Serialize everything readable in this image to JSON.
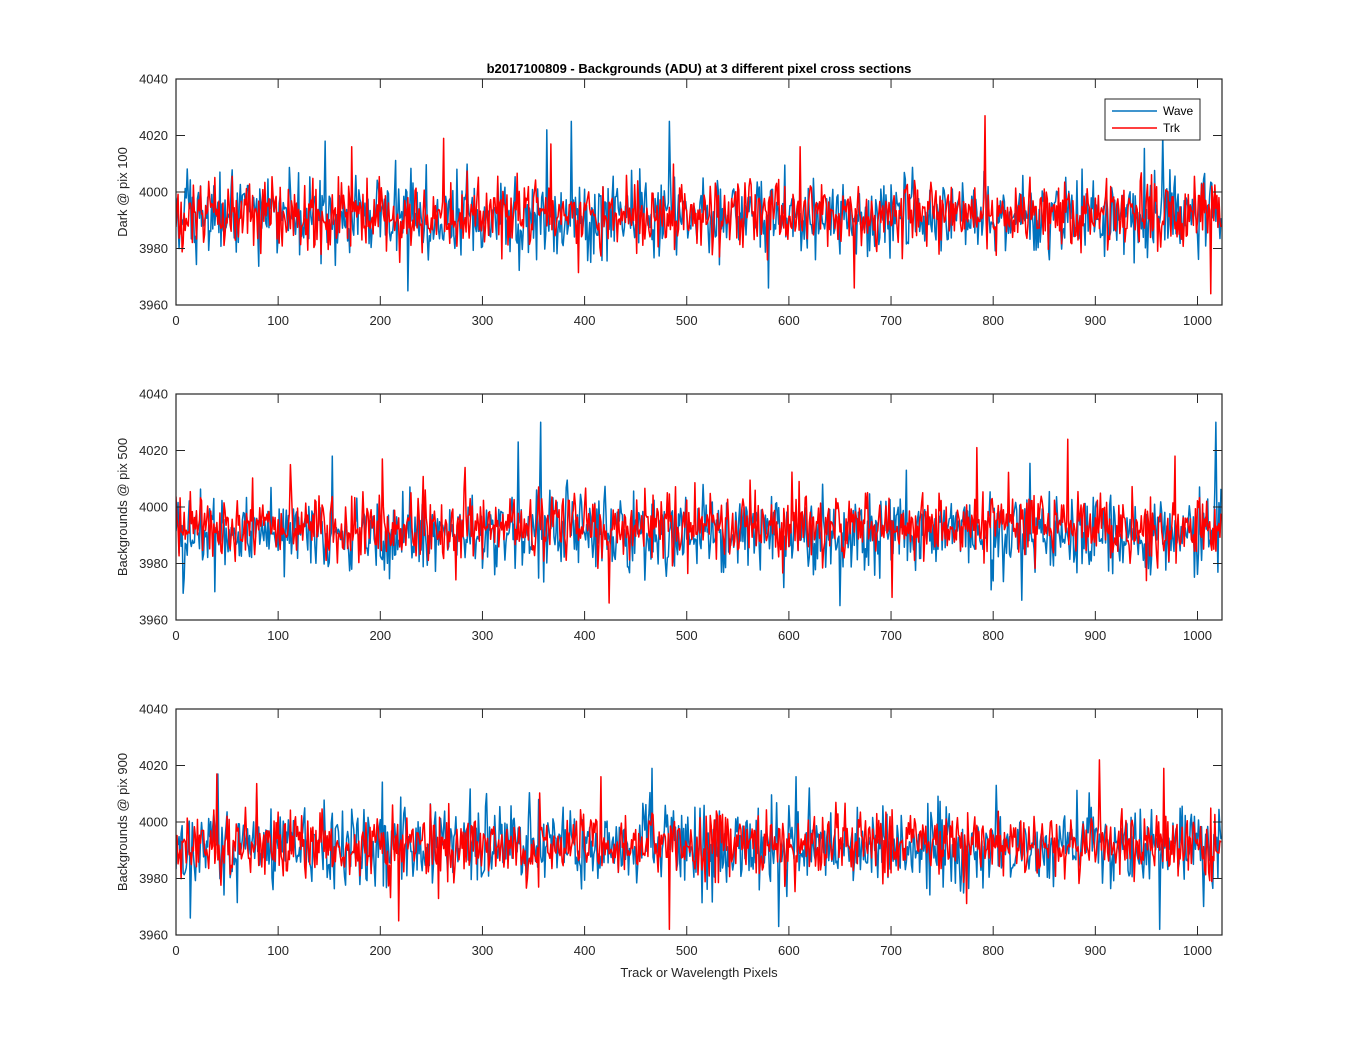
{
  "title": "b2017100809 - Backgrounds (ADU) at 3 different pixel cross sections",
  "xlabel": "Track or Wavelength Pixels",
  "legend": {
    "entries": [
      "Wave",
      "Trk"
    ],
    "placement": "top-right"
  },
  "colors": {
    "wave": "#0072BD",
    "trk": "#FF0000",
    "axes": "#262626"
  },
  "chart_data": [
    {
      "type": "line",
      "ylabel": "Dark @ pix 100",
      "xlim": [
        0,
        1024
      ],
      "ylim": [
        3960,
        4040
      ],
      "xticks": [
        0,
        100,
        200,
        300,
        400,
        500,
        600,
        700,
        800,
        900,
        1000
      ],
      "yticks": [
        3960,
        3980,
        4000,
        4020,
        4040
      ],
      "xtick_labels": [
        "0",
        "100",
        "200",
        "300",
        "400",
        "500",
        "600",
        "700",
        "800",
        "900",
        "1000"
      ],
      "ytick_labels": [
        "3960",
        "3980",
        "4000",
        "4020",
        "4040"
      ],
      "series": [
        {
          "name": "Wave",
          "color": "#0072BD",
          "n_points": 1024,
          "mean": 3992,
          "std": 7,
          "spikes": [
            [
              146,
              4018
            ],
            [
              363,
              4022
            ],
            [
              387,
              4025
            ],
            [
              483,
              4025
            ],
            [
              966,
              4020
            ],
            [
              227,
              3965
            ],
            [
              580,
              3966
            ]
          ]
        },
        {
          "name": "Trk",
          "color": "#FF0000",
          "n_points": 1024,
          "mean": 3992,
          "std": 6,
          "spikes": [
            [
              172,
              4016
            ],
            [
              262,
              4019
            ],
            [
              367,
              4017
            ],
            [
              611,
              4016
            ],
            [
              792,
              4027
            ],
            [
              664,
              3966
            ],
            [
              1013,
              3964
            ]
          ]
        }
      ]
    },
    {
      "type": "line",
      "ylabel": "Backgrounds @ pix 500",
      "xlim": [
        0,
        1024
      ],
      "ylim": [
        3960,
        4040
      ],
      "xticks": [
        0,
        100,
        200,
        300,
        400,
        500,
        600,
        700,
        800,
        900,
        1000
      ],
      "yticks": [
        3960,
        3980,
        4000,
        4020,
        4040
      ],
      "xtick_labels": [
        "0",
        "100",
        "200",
        "300",
        "400",
        "500",
        "600",
        "700",
        "800",
        "900",
        "1000"
      ],
      "ytick_labels": [
        "3960",
        "3980",
        "4000",
        "4020",
        "4040"
      ],
      "series": [
        {
          "name": "Wave",
          "color": "#0072BD",
          "n_points": 1024,
          "mean": 3991,
          "std": 7,
          "spikes": [
            [
              153,
              4018
            ],
            [
              335,
              4023
            ],
            [
              357,
              4030
            ],
            [
              1018,
              4030
            ],
            [
              38,
              3970
            ],
            [
              828,
              3967
            ]
          ]
        },
        {
          "name": "Trk",
          "color": "#FF0000",
          "n_points": 1024,
          "mean": 3993,
          "std": 6,
          "spikes": [
            [
              112,
              4015
            ],
            [
              202,
              4017
            ],
            [
              283,
              4014
            ],
            [
              784,
              4021
            ],
            [
              873,
              4024
            ],
            [
              978,
              4018
            ],
            [
              424,
              3966
            ],
            [
              701,
              3968
            ]
          ]
        }
      ]
    },
    {
      "type": "line",
      "ylabel": "Backgrounds @ pix 900",
      "xlim": [
        0,
        1024
      ],
      "ylim": [
        3960,
        4040
      ],
      "xticks": [
        0,
        100,
        200,
        300,
        400,
        500,
        600,
        700,
        800,
        900,
        1000
      ],
      "yticks": [
        3960,
        3980,
        4000,
        4020,
        4040
      ],
      "xtick_labels": [
        "0",
        "100",
        "200",
        "300",
        "400",
        "500",
        "600",
        "700",
        "800",
        "900",
        "1000"
      ],
      "ytick_labels": [
        "3960",
        "3980",
        "4000",
        "4020",
        "4040"
      ],
      "series": [
        {
          "name": "Wave",
          "color": "#0072BD",
          "n_points": 1024,
          "mean": 3992,
          "std": 7,
          "spikes": [
            [
              41,
              4017
            ],
            [
              466,
              4019
            ],
            [
              590,
              3963
            ],
            [
              963,
              3962
            ],
            [
              14,
              3966
            ],
            [
              607,
              4016
            ]
          ]
        },
        {
          "name": "Trk",
          "color": "#FF0000",
          "n_points": 1024,
          "mean": 3992,
          "std": 6,
          "spikes": [
            [
              40,
              4017
            ],
            [
              416,
              4016
            ],
            [
              904,
              4022
            ],
            [
              967,
              4019
            ],
            [
              218,
              3965
            ],
            [
              483,
              3962
            ]
          ]
        }
      ]
    }
  ]
}
